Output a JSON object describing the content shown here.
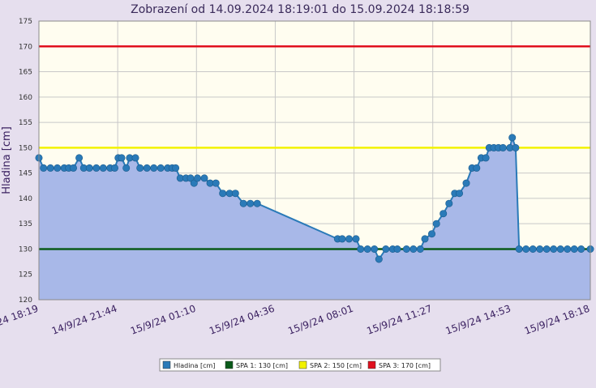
{
  "chart_data": {
    "type": "area",
    "title": "Zobrazení od 14.09.2024 18:19:01 do 15.09.2024 18:18:59",
    "ylabel": "Hladina [cm]",
    "xlabel": "",
    "ylim": [
      120,
      175
    ],
    "yticks": [
      120,
      125,
      130,
      135,
      140,
      145,
      150,
      155,
      160,
      165,
      170,
      175
    ],
    "xlim_hours": [
      0,
      24
    ],
    "xtick_labels": [
      "14/9/24 18:19",
      "14/9/24 21:44",
      "15/9/24 01:10",
      "15/9/24 04:36",
      "15/9/24 08:01",
      "15/9/24 11:27",
      "15/9/24 14:53",
      "15/9/24 18:18"
    ],
    "grid": true,
    "legend_position": "bottom",
    "series": [
      {
        "name": "Hladina [cm]",
        "color": "#2a7ab8",
        "fill": "#a8b8e8",
        "points": [
          [
            0.0,
            148
          ],
          [
            0.2,
            146
          ],
          [
            0.5,
            146
          ],
          [
            0.8,
            146
          ],
          [
            1.1,
            146
          ],
          [
            1.3,
            146
          ],
          [
            1.5,
            146
          ],
          [
            1.75,
            148
          ],
          [
            1.95,
            146
          ],
          [
            2.2,
            146
          ],
          [
            2.5,
            146
          ],
          [
            2.8,
            146
          ],
          [
            3.1,
            146
          ],
          [
            3.3,
            146
          ],
          [
            3.45,
            148
          ],
          [
            3.6,
            148
          ],
          [
            3.8,
            146
          ],
          [
            3.95,
            148
          ],
          [
            4.2,
            148
          ],
          [
            4.4,
            146
          ],
          [
            4.7,
            146
          ],
          [
            5.0,
            146
          ],
          [
            5.3,
            146
          ],
          [
            5.6,
            146
          ],
          [
            5.8,
            146
          ],
          [
            5.95,
            146
          ],
          [
            6.15,
            144
          ],
          [
            6.4,
            144
          ],
          [
            6.6,
            144
          ],
          [
            6.75,
            143
          ],
          [
            6.9,
            144
          ],
          [
            7.2,
            144
          ],
          [
            7.45,
            143
          ],
          [
            7.7,
            143
          ],
          [
            8.0,
            141
          ],
          [
            8.3,
            141
          ],
          [
            8.55,
            141
          ],
          [
            8.9,
            139
          ],
          [
            9.2,
            139
          ],
          [
            9.5,
            139
          ],
          [
            13.0,
            132
          ],
          [
            13.2,
            132
          ],
          [
            13.5,
            132
          ],
          [
            13.8,
            132
          ],
          [
            14.0,
            130
          ],
          [
            14.3,
            130
          ],
          [
            14.6,
            130
          ],
          [
            14.8,
            128
          ],
          [
            15.1,
            130
          ],
          [
            15.4,
            130
          ],
          [
            15.6,
            130
          ],
          [
            16.0,
            130
          ],
          [
            16.3,
            130
          ],
          [
            16.6,
            130
          ],
          [
            16.8,
            132
          ],
          [
            17.1,
            133
          ],
          [
            17.3,
            135
          ],
          [
            17.6,
            137
          ],
          [
            17.85,
            139
          ],
          [
            18.1,
            141
          ],
          [
            18.3,
            141
          ],
          [
            18.6,
            143
          ],
          [
            18.85,
            146
          ],
          [
            19.05,
            146
          ],
          [
            19.25,
            148
          ],
          [
            19.45,
            148
          ],
          [
            19.6,
            150
          ],
          [
            19.8,
            150
          ],
          [
            20.0,
            150
          ],
          [
            20.2,
            150
          ],
          [
            20.5,
            150
          ],
          [
            20.6,
            152
          ],
          [
            20.75,
            150
          ],
          [
            20.9,
            130
          ],
          [
            21.2,
            130
          ],
          [
            21.5,
            130
          ],
          [
            21.8,
            130
          ],
          [
            22.1,
            130
          ],
          [
            22.4,
            130
          ],
          [
            22.7,
            130
          ],
          [
            23.0,
            130
          ],
          [
            23.3,
            130
          ],
          [
            23.6,
            130
          ],
          [
            24.0,
            130
          ]
        ]
      },
      {
        "name": "SPA 1: 130 [cm]",
        "color": "#0a5a1a",
        "value": 130
      },
      {
        "name": "SPA 2: 150 [cm]",
        "color": "#f2f200",
        "value": 150
      },
      {
        "name": "SPA 3: 170 [cm]",
        "color": "#e0101e",
        "value": 170
      }
    ]
  }
}
